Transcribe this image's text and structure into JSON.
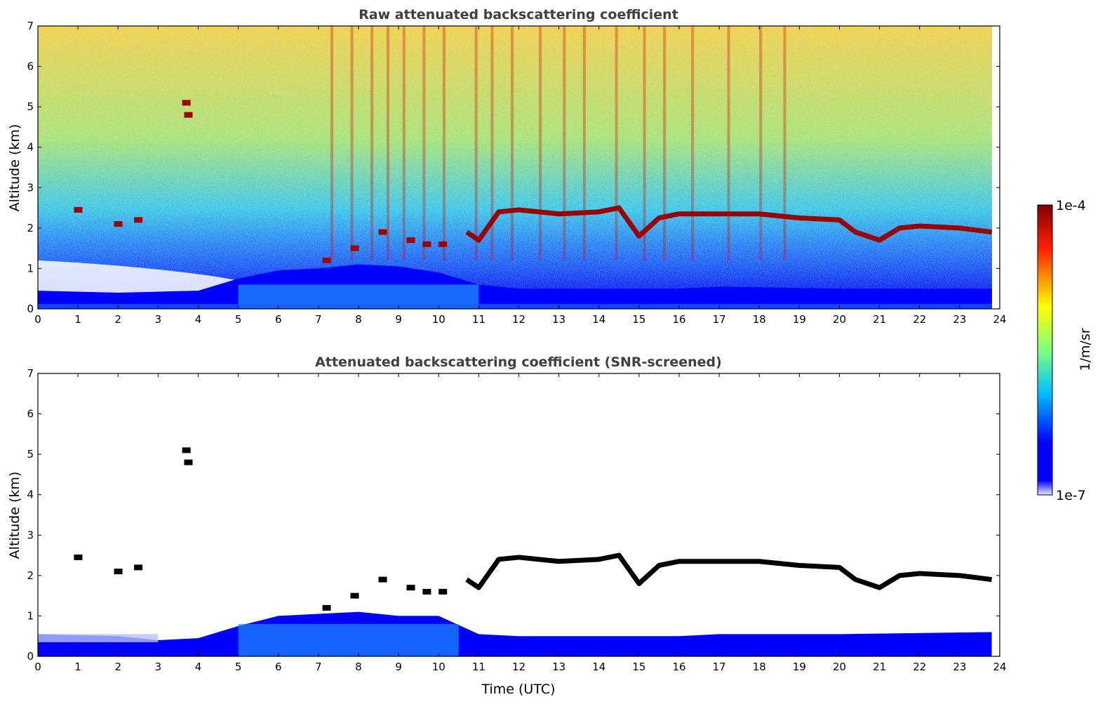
{
  "chart_data": [
    {
      "type": "heatmap",
      "title": "Raw attenuated backscattering coefficient",
      "xlabel": "",
      "ylabel": "Altitude (km)",
      "xlim": [
        0,
        24
      ],
      "ylim": [
        0,
        7
      ],
      "x_ticks": [
        "0",
        "1",
        "2",
        "3",
        "4",
        "5",
        "6",
        "7",
        "8",
        "9",
        "10",
        "11",
        "12",
        "13",
        "14",
        "15",
        "16",
        "17",
        "18",
        "19",
        "20",
        "21",
        "22",
        "23",
        "24"
      ],
      "y_ticks": [
        "0",
        "1",
        "2",
        "3",
        "4",
        "5",
        "6",
        "7"
      ],
      "data_extent_hours": 23.8,
      "cloud_layer_km": {
        "time": [
          10.7,
          11.0,
          11.5,
          12.0,
          13.0,
          14.0,
          14.5,
          15.0,
          15.5,
          16.0,
          17.0,
          18.0,
          19.0,
          20.0,
          20.4,
          21.0,
          21.5,
          22.0,
          23.0,
          23.8
        ],
        "altitude": [
          1.9,
          1.7,
          2.4,
          2.45,
          2.35,
          2.4,
          2.5,
          1.8,
          2.25,
          2.35,
          2.35,
          2.35,
          2.25,
          2.2,
          1.9,
          1.7,
          2.0,
          2.05,
          2.0,
          1.9
        ]
      },
      "boundary_layer_top_km": {
        "time": [
          0,
          2,
          4,
          5,
          6,
          7,
          8,
          9,
          10,
          11,
          12,
          14,
          16,
          17,
          20,
          23.8
        ],
        "altitude": [
          0.45,
          0.4,
          0.45,
          0.75,
          0.95,
          1.0,
          1.1,
          1.05,
          0.9,
          0.6,
          0.5,
          0.5,
          0.5,
          0.55,
          0.5,
          0.5
        ]
      }
    },
    {
      "type": "heatmap",
      "title": "Attenuated backscattering coefficient (SNR-screened)",
      "xlabel": "Time (UTC)",
      "ylabel": "Altitude (km)",
      "xlim": [
        0,
        24
      ],
      "ylim": [
        0,
        7
      ],
      "x_ticks": [
        "0",
        "1",
        "2",
        "3",
        "4",
        "5",
        "6",
        "7",
        "8",
        "9",
        "10",
        "11",
        "12",
        "13",
        "14",
        "15",
        "16",
        "17",
        "18",
        "19",
        "20",
        "21",
        "22",
        "23",
        "24"
      ],
      "y_ticks": [
        "0",
        "1",
        "2",
        "3",
        "4",
        "5",
        "6",
        "7"
      ],
      "data_extent_hours": 23.8,
      "boundary_layer_top_km": {
        "time": [
          0,
          2,
          3,
          4,
          5,
          6,
          7,
          8,
          9,
          10,
          11,
          12,
          14,
          16,
          17,
          20,
          23.8
        ],
        "altitude": [
          0.55,
          0.5,
          0.4,
          0.45,
          0.75,
          1.0,
          1.05,
          1.1,
          1.0,
          1.0,
          0.55,
          0.5,
          0.5,
          0.5,
          0.55,
          0.55,
          0.6
        ]
      }
    }
  ],
  "colorbar": {
    "label": "1/m/sr",
    "max_label": "1e-4",
    "min_label": "1e-7",
    "scale": "log",
    "colormap": "jet",
    "colors": [
      "#e6e6fa",
      "#0000ff",
      "#00bfff",
      "#7fff7f",
      "#ffff00",
      "#ff4500",
      "#800000"
    ]
  }
}
